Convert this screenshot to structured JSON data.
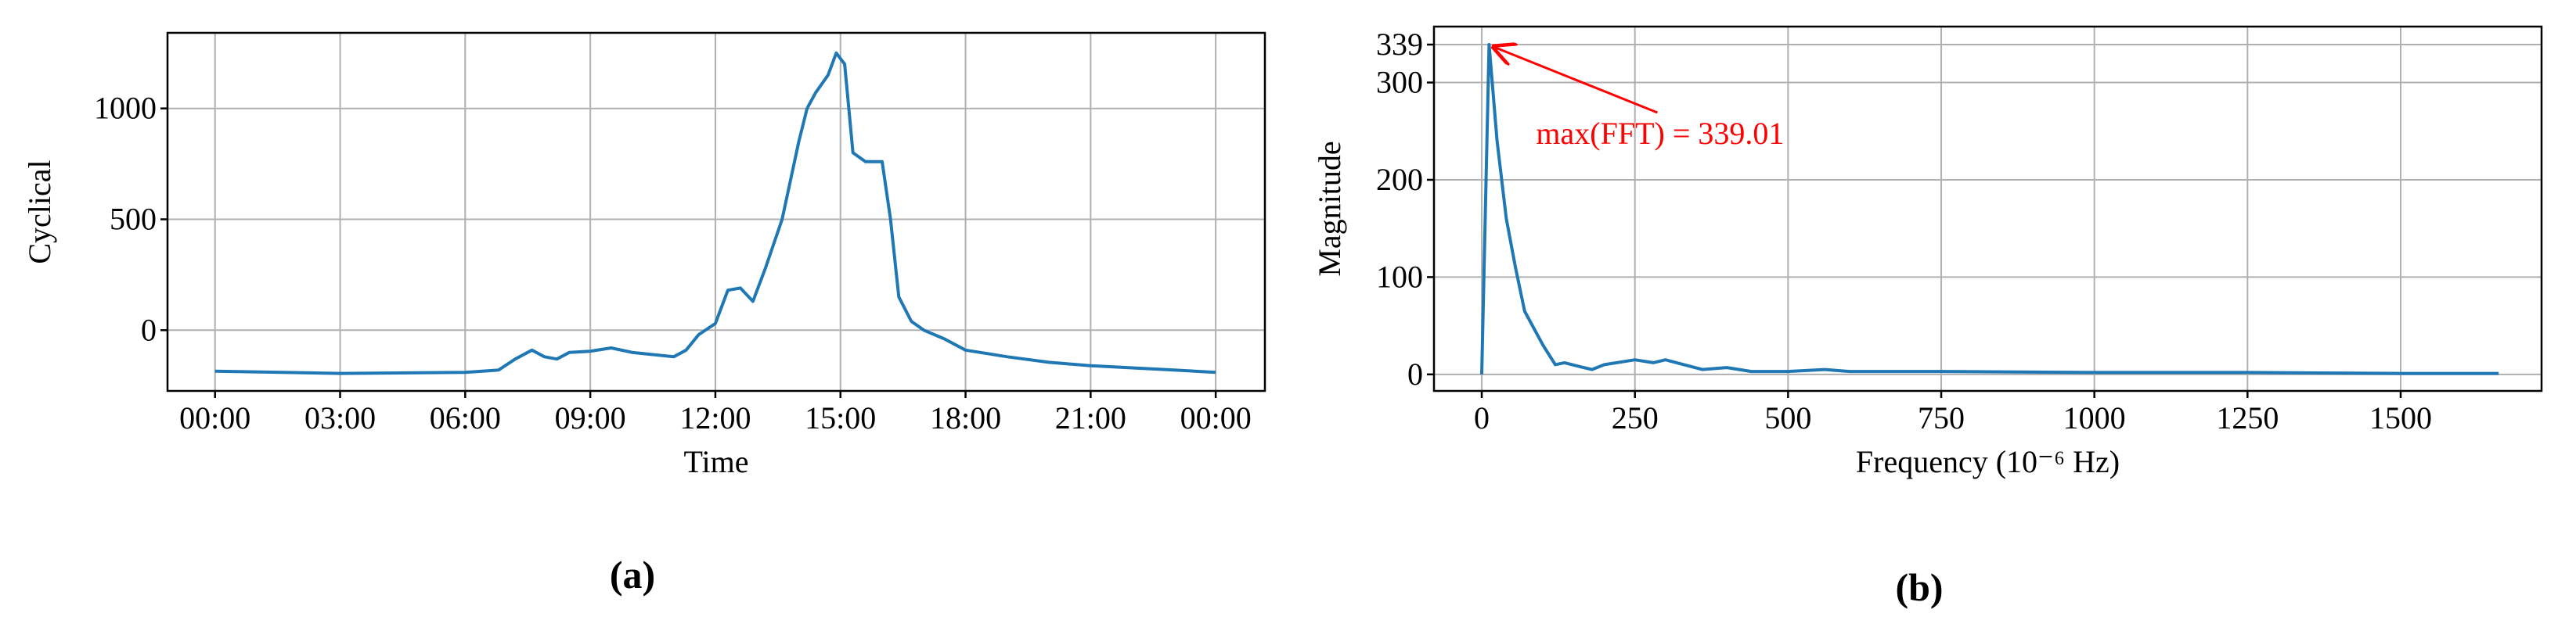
{
  "chart_data": [
    {
      "type": "line",
      "panel_label": "(a)",
      "x_label": "Time",
      "y_label": "Cyclical",
      "xlim": [
        -1.14,
        25.18
      ],
      "ylim": [
        -274,
        1341
      ],
      "xticks": [
        {
          "value": 0,
          "label": "00:00"
        },
        {
          "value": 3,
          "label": "03:00"
        },
        {
          "value": 6,
          "label": "06:00"
        },
        {
          "value": 9,
          "label": "09:00"
        },
        {
          "value": 12,
          "label": "12:00"
        },
        {
          "value": 15,
          "label": "15:00"
        },
        {
          "value": 18,
          "label": "18:00"
        },
        {
          "value": 21,
          "label": "21:00"
        },
        {
          "value": 24,
          "label": "00:00"
        }
      ],
      "yticks": [
        0,
        500,
        1000
      ],
      "grid": true,
      "x": [
        0,
        3,
        6,
        6.8,
        7.2,
        7.6,
        7.9,
        8.2,
        8.5,
        9,
        9.5,
        10,
        10.5,
        11,
        11.3,
        11.6,
        12,
        12.3,
        12.6,
        12.9,
        13.2,
        13.6,
        14,
        14.2,
        14.4,
        14.7,
        14.9,
        15.1,
        15.3,
        15.6,
        16,
        16.2,
        16.4,
        16.7,
        17,
        17.5,
        18,
        19,
        20,
        21,
        22,
        23,
        24
      ],
      "series": [
        {
          "color": "#1f77b4",
          "values": [
            -185,
            -195,
            -190,
            -180,
            -130,
            -90,
            -120,
            -130,
            -100,
            -95,
            -80,
            -100,
            -110,
            -120,
            -90,
            -20,
            30,
            180,
            190,
            130,
            280,
            500,
            850,
            1000,
            1070,
            1150,
            1250,
            1200,
            800,
            760,
            760,
            500,
            150,
            40,
            0,
            -40,
            -90,
            -120,
            -145,
            -160,
            -170,
            -180,
            -190
          ]
        }
      ]
    },
    {
      "type": "line",
      "panel_label": "(b)",
      "x_label": "Frequency (10⁻⁶ Hz)",
      "y_label": "Magnitude",
      "xlim": [
        -78,
        1730
      ],
      "ylim": [
        -17,
        357.5
      ],
      "xticks": [
        0,
        250,
        500,
        750,
        1000,
        1250,
        1500
      ],
      "yticks": [
        0,
        100,
        200,
        300,
        339
      ],
      "grid": true,
      "annotation": "max(FFT) = 339.01",
      "annotation_color": "#ff0000",
      "x": [
        0,
        12,
        25,
        40,
        55,
        70,
        100,
        120,
        135,
        160,
        180,
        200,
        250,
        280,
        300,
        330,
        360,
        400,
        440,
        500,
        560,
        600,
        750,
        1000,
        1250,
        1500,
        1660
      ],
      "series": [
        {
          "color": "#1f77b4",
          "values": [
            0,
            339,
            240,
            160,
            110,
            65,
            30,
            10,
            12,
            8,
            5,
            10,
            15,
            12,
            15,
            10,
            5,
            7,
            3,
            3,
            5,
            3,
            3,
            2,
            2,
            1,
            1
          ]
        }
      ]
    }
  ]
}
